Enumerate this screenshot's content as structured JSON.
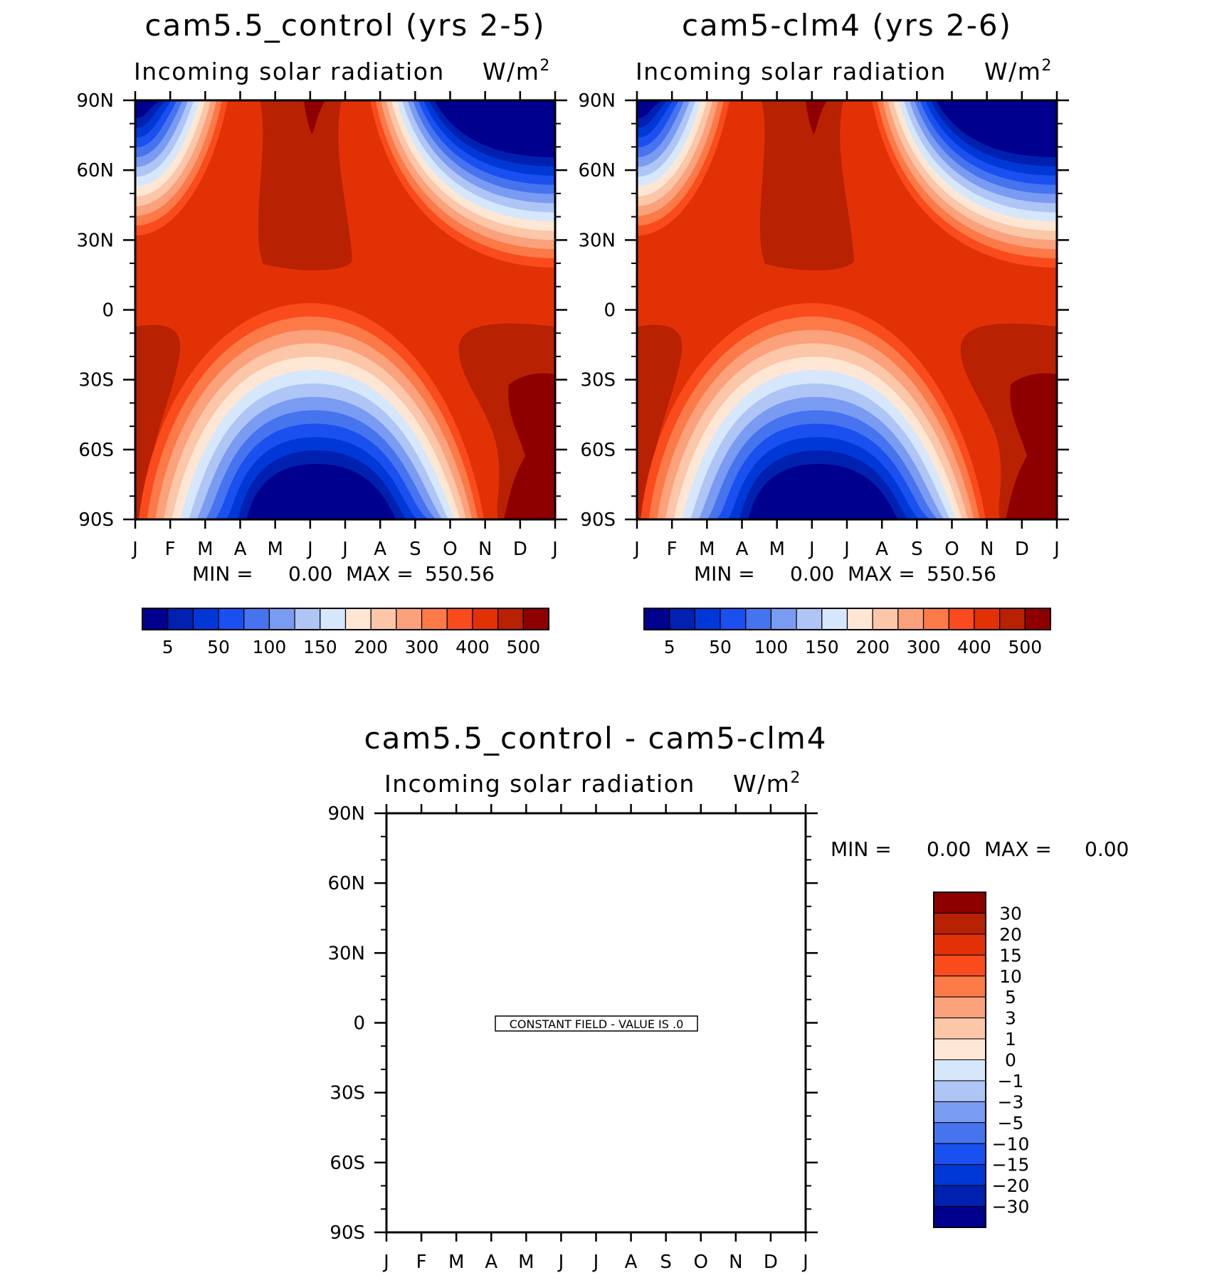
{
  "chart_data": [
    {
      "type": "heatmap",
      "title": "cam5.5_control (yrs 2-5)",
      "subtitle": "Incoming solar radiation",
      "units": "W/m",
      "units_sup": "2",
      "x_labels": [
        "J",
        "F",
        "M",
        "A",
        "M",
        "J",
        "J",
        "A",
        "S",
        "O",
        "N",
        "D",
        "J"
      ],
      "y_labels": [
        "90N",
        "60N",
        "30N",
        "0",
        "30S",
        "60S",
        "90S"
      ],
      "ylim": [
        -90,
        90
      ],
      "min_label": "MIN =",
      "min_value": "0.00",
      "max_label": "MAX =",
      "max_value": "550.56",
      "levels": [
        5,
        50,
        100,
        150,
        200,
        300,
        400,
        500
      ]
    },
    {
      "type": "heatmap",
      "title": "cam5-clm4 (yrs 2-6)",
      "subtitle": "Incoming solar radiation",
      "units": "W/m",
      "units_sup": "2",
      "x_labels": [
        "J",
        "F",
        "M",
        "A",
        "M",
        "J",
        "J",
        "A",
        "S",
        "O",
        "N",
        "D",
        "J"
      ],
      "y_labels": [
        "90N",
        "60N",
        "30N",
        "0",
        "30S",
        "60S",
        "90S"
      ],
      "ylim": [
        -90,
        90
      ],
      "min_label": "MIN =",
      "min_value": "0.00",
      "max_label": "MAX =",
      "max_value": "550.56",
      "levels": [
        5,
        50,
        100,
        150,
        200,
        300,
        400,
        500
      ]
    },
    {
      "type": "heatmap",
      "title": "cam5.5_control - cam5-clm4",
      "subtitle": "Incoming solar radiation",
      "units": "W/m",
      "units_sup": "2",
      "x_labels": [
        "J",
        "F",
        "M",
        "A",
        "M",
        "J",
        "J",
        "A",
        "S",
        "O",
        "N",
        "D",
        "J"
      ],
      "y_labels": [
        "90N",
        "60N",
        "30N",
        "0",
        "30S",
        "60S",
        "90S"
      ],
      "ylim": [
        -90,
        90
      ],
      "min_label": "MIN =",
      "min_value": "0.00",
      "max_label": "MAX =",
      "max_value": "0.00",
      "constant_field_note": "CONSTANT FIELD - VALUE IS .0",
      "levels": [
        30,
        20,
        15,
        10,
        5,
        3,
        1,
        0,
        -1,
        -3,
        -5,
        -10,
        -15,
        -20,
        -30
      ]
    }
  ],
  "colors": {
    "scale_abs": [
      "#00008f",
      "#0020b0",
      "#0038d8",
      "#1a4ff0",
      "#4673ee",
      "#7a9bf2",
      "#aec5f6",
      "#d6e7fb",
      "#fde7d4",
      "#fcc6a8",
      "#fba17c",
      "#fc7a48",
      "#fa4b1c",
      "#e33106",
      "#b82102",
      "#8e0000"
    ],
    "scale_diff": [
      "#8e0000",
      "#b82102",
      "#e33106",
      "#fa4b1c",
      "#fc7a48",
      "#fba17c",
      "#fcc6a8",
      "#fde7d4",
      "#d6e7fb",
      "#aec5f6",
      "#7a9bf2",
      "#4673ee",
      "#1a4ff0",
      "#0038d8",
      "#0020b0",
      "#00008f"
    ]
  }
}
